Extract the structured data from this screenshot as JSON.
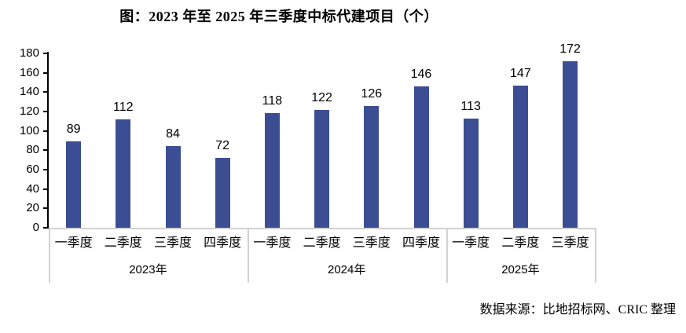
{
  "title": "图：2023 年至 2025 年三季度中标代建项目（个）",
  "source_note": "数据来源：比地招标网、CRIC 整理",
  "colors": {
    "bar": "#3b4e94",
    "axis_line": "#000000",
    "category_line": "#d2d2d2",
    "text": "#000000",
    "background": "#ffffff"
  },
  "chart_data": {
    "type": "bar",
    "title": "图：2023 年至 2025 年三季度中标代建项目（个）",
    "groups": [
      {
        "year": "2023年",
        "categories": [
          "一季度",
          "二季度",
          "三季度",
          "四季度"
        ],
        "values": [
          89,
          112,
          84,
          72
        ]
      },
      {
        "year": "2024年",
        "categories": [
          "一季度",
          "二季度",
          "三季度",
          "四季度"
        ],
        "values": [
          118,
          122,
          126,
          146
        ]
      },
      {
        "year": "2025年",
        "categories": [
          "一季度",
          "二季度",
          "三季度"
        ],
        "values": [
          113,
          147,
          172
        ]
      }
    ],
    "ylim": [
      0,
      180
    ],
    "ytick_step": 20,
    "yticks": [
      0,
      20,
      40,
      60,
      80,
      100,
      120,
      140,
      160,
      180
    ],
    "xlabel": "",
    "ylabel": "",
    "grid": false,
    "legend": null,
    "data_labels": true
  }
}
